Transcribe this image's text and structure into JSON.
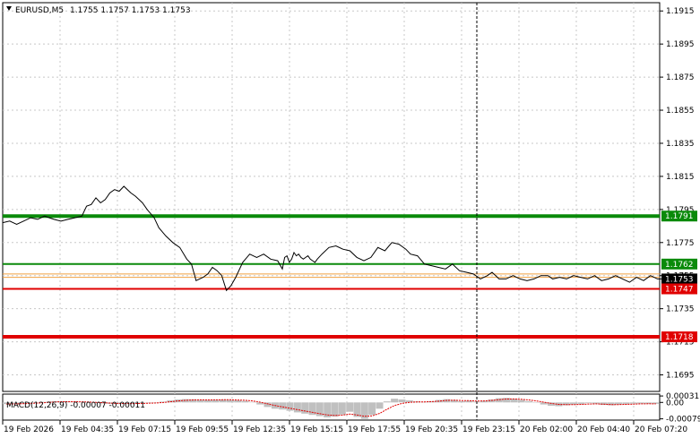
{
  "chart_data": {
    "type": "line",
    "title": "EURUSD,M5",
    "ohlc": "1.1755 1.1757 1.1753 1.1753",
    "menu_icon": "triangle-down-icon",
    "price_axis": {
      "ylim": [
        1.1685,
        1.192
      ],
      "tick_labels": [
        "1.1915",
        "1.1895",
        "1.1875",
        "1.1855",
        "1.1835",
        "1.1815",
        "1.1795",
        "1.1775",
        "1.1755",
        "1.1735",
        "1.1715",
        "1.1695"
      ]
    },
    "x_labels": [
      "19 Feb 2026",
      "19 Feb 04:35",
      "19 Feb 07:15",
      "19 Feb 09:55",
      "19 Feb 12:35",
      "19 Feb 15:15",
      "19 Feb 17:55",
      "19 Feb 20:35",
      "19 Feb 23:15",
      "20 Feb 02:00",
      "20 Feb 04:40",
      "20 Feb 07:20"
    ],
    "price_series": {
      "name": "EURUSD,M5",
      "color": "#000000",
      "x": [
        0,
        3,
        6,
        9,
        12,
        15,
        18,
        20,
        22,
        25,
        28,
        31,
        34,
        36,
        38,
        40,
        42,
        44,
        46,
        48,
        50,
        52,
        55,
        57,
        60,
        62,
        65,
        67,
        70,
        73,
        76,
        79,
        81,
        83,
        86,
        88,
        90,
        92,
        94,
        96,
        98,
        100,
        103,
        106,
        109,
        112,
        115,
        118,
        120,
        121,
        122,
        123,
        124,
        125,
        126,
        127,
        128,
        129,
        130,
        131,
        132,
        133,
        134,
        135,
        137,
        140,
        143,
        146,
        149,
        152,
        155,
        158,
        161,
        164,
        167,
        170,
        173,
        175,
        178,
        181,
        184,
        187,
        190,
        193,
        196,
        199,
        202,
        205,
        208,
        210,
        213,
        216,
        219,
        222,
        225,
        228,
        231,
        234,
        236,
        239,
        242,
        245,
        248,
        251,
        254,
        257,
        260,
        263,
        266,
        269,
        272,
        275,
        278,
        281,
        284
      ],
      "values": [
        1.1787,
        1.1788,
        1.1786,
        1.1788,
        1.179,
        1.1789,
        1.1791,
        1.179,
        1.1789,
        1.1788,
        1.1789,
        1.179,
        1.1791,
        1.1797,
        1.1798,
        1.1802,
        1.1799,
        1.1801,
        1.1805,
        1.1807,
        1.1806,
        1.1809,
        1.1805,
        1.1803,
        1.1799,
        1.1795,
        1.179,
        1.1784,
        1.1779,
        1.1775,
        1.1772,
        1.1765,
        1.1762,
        1.1752,
        1.1754,
        1.1756,
        1.176,
        1.1758,
        1.1755,
        1.1746,
        1.1749,
        1.1754,
        1.1763,
        1.1768,
        1.1766,
        1.1768,
        1.1765,
        1.1764,
        1.1759,
        1.1766,
        1.1767,
        1.1763,
        1.1765,
        1.1769,
        1.1767,
        1.1768,
        1.1766,
        1.1765,
        1.1766,
        1.1767,
        1.1765,
        1.1764,
        1.1763,
        1.1765,
        1.1768,
        1.1772,
        1.1773,
        1.1771,
        1.177,
        1.1766,
        1.1764,
        1.1766,
        1.1772,
        1.177,
        1.1775,
        1.1774,
        1.1771,
        1.1768,
        1.1767,
        1.1762,
        1.1761,
        1.176,
        1.1759,
        1.1762,
        1.1758,
        1.1757,
        1.1756,
        1.1753,
        1.1755,
        1.1757,
        1.1753,
        1.1753,
        1.1755,
        1.1753,
        1.1752,
        1.1753,
        1.1755,
        1.1755,
        1.1753,
        1.1754,
        1.1753,
        1.1755,
        1.1754,
        1.1753,
        1.1755,
        1.1752,
        1.1753,
        1.1755,
        1.1753,
        1.1751,
        1.1754,
        1.1752,
        1.1755,
        1.1753,
        1.1753
      ]
    },
    "levels": [
      {
        "label": "1.1791",
        "value": 1.1791,
        "color": "#0a8a0a",
        "style": "thick",
        "label_bg": "#0a8a0a"
      },
      {
        "label": "1.1762",
        "value": 1.1762,
        "color": "#0a8a0a",
        "style": "normal",
        "label_bg": "#0a8a0a"
      },
      {
        "label": "1.1753",
        "value": 1.1753,
        "color": "#000000",
        "style": "current",
        "label_bg": "#000000"
      },
      {
        "label": "1.1747",
        "value": 1.1747,
        "color": "#e00000",
        "style": "normal",
        "label_bg": "#e00000"
      },
      {
        "label": "1.1718",
        "value": 1.1718,
        "color": "#e00000",
        "style": "thick",
        "label_bg": "#e00000"
      }
    ],
    "orange_lines": [
      1.1754,
      1.1756
    ],
    "macd": {
      "label": "MACD(12,26,9) -0.00007 -0.00011",
      "ylim": [
        -0.00085,
        0.0004
      ],
      "tick_labels": [
        {
          "label": "0.00031",
          "value": 0.00031
        },
        {
          "label": "0.00",
          "value": 0.0
        },
        {
          "label": "-0.00079",
          "value": -0.00079
        }
      ],
      "histogram_color": "#c0c0c0",
      "signal_color": "#e00000",
      "histogram": [
        -8e-05,
        -6e-05,
        -5e-05,
        -3e-05,
        0.0,
        3e-05,
        5e-05,
        6e-05,
        5e-05,
        3e-05,
        2e-05,
        0.0,
        -2e-05,
        -5e-05,
        -7e-05,
        -8e-05,
        -7e-05,
        -6e-05,
        -4e-05,
        -2e-05,
        0.0,
        4e-05,
        0.0001,
        0.00014,
        0.00016,
        0.00015,
        0.00013,
        0.00012,
        0.00013,
        0.00014,
        0.00012,
        0.0001,
        7e-05,
        2e-05,
        -0.0001,
        -0.00022,
        -0.0003,
        -0.00034,
        -0.0004,
        -0.00048,
        -0.00054,
        -0.0006,
        -0.00066,
        -0.00072,
        -0.00068,
        -0.00058,
        -0.00045,
        -0.0007,
        -0.00079,
        -0.0006,
        -0.0003,
        5e-05,
        0.00018,
        0.00014,
        0.0001,
        5e-05,
        3e-05,
        6e-05,
        0.00012,
        0.00016,
        0.00012,
        6e-05,
        8e-05,
        4e-05,
        8e-05,
        0.00014,
        0.0002,
        0.00022,
        0.00018,
        0.00012,
        6e-05,
        -2e-05,
        -0.0001,
        -0.00016,
        -0.00018,
        -0.00014,
        -0.0001,
        -8e-05,
        -4e-05,
        -6e-05,
        -0.00012,
        -0.00014,
        -0.0001,
        -8e-05,
        -6e-05,
        -5e-05,
        -6e-05,
        -7e-05
      ]
    }
  }
}
